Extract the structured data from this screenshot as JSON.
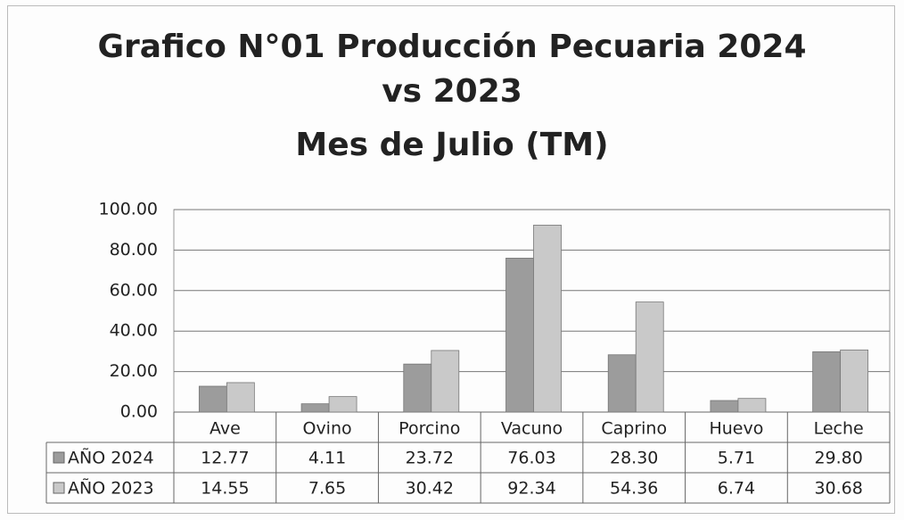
{
  "chart_data": {
    "type": "bar",
    "title": "Grafico  N°01 Producción Pecuaria 2024 vs 2023",
    "subtitle": "Mes de  Julio (TM)",
    "categories": [
      "Ave",
      "Ovino",
      "Porcino",
      "Vacuno",
      "Caprino",
      "Huevo",
      "Leche"
    ],
    "series": [
      {
        "name": "AÑO 2024",
        "color": "#9c9c9c",
        "values": [
          12.77,
          4.11,
          23.72,
          76.03,
          28.3,
          5.71,
          29.8
        ],
        "value_labels": [
          "12.77",
          "4.11",
          "23.72",
          "76.03",
          "28.30",
          "5.71",
          "29.80"
        ]
      },
      {
        "name": "AÑO 2023",
        "color": "#c9c9c9",
        "values": [
          14.55,
          7.65,
          30.42,
          92.34,
          54.36,
          6.74,
          30.68
        ],
        "value_labels": [
          "14.55",
          "7.65",
          "30.42",
          "92.34",
          "54.36",
          "6.74",
          "30.68"
        ]
      }
    ],
    "ylim": [
      0,
      100
    ],
    "yticks": [
      {
        "value": 0,
        "label": "0.00"
      },
      {
        "value": 20,
        "label": "20.00"
      },
      {
        "value": 40,
        "label": "40.00"
      },
      {
        "value": 60,
        "label": "60.00"
      },
      {
        "value": 80,
        "label": "80.00"
      },
      {
        "value": 100,
        "label": "100.00"
      }
    ],
    "grid": true
  }
}
